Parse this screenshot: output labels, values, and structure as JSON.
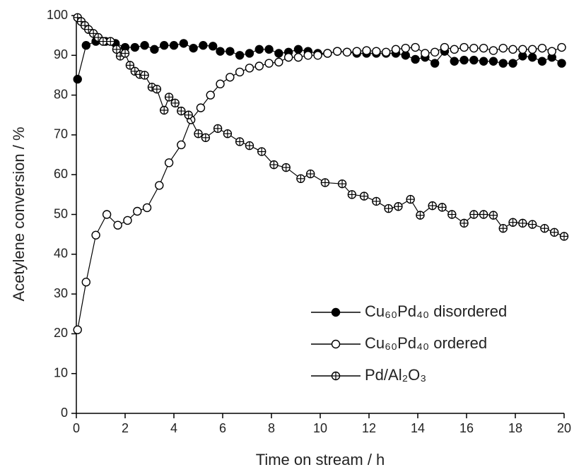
{
  "chart_data": {
    "type": "line",
    "xlabel": "Time on stream / h",
    "ylabel": "Acetylene conversion / %",
    "xlim": [
      0,
      20
    ],
    "xticks": [
      0,
      2,
      4,
      6,
      8,
      10,
      12,
      14,
      16,
      18,
      20
    ],
    "ylim": [
      0,
      100
    ],
    "yticks": [
      0,
      10,
      20,
      30,
      40,
      50,
      60,
      70,
      80,
      90,
      100
    ],
    "legend": "lower right",
    "series": [
      {
        "name": "Cu₆₀Pd₄₀ disordered",
        "color": "#000000",
        "marker": "filled",
        "x": [
          0.05,
          0.4,
          0.8,
          1.2,
          1.6,
          2.0,
          2.4,
          2.8,
          3.2,
          3.6,
          4.0,
          4.4,
          4.8,
          5.2,
          5.6,
          5.9,
          6.3,
          6.7,
          7.1,
          7.5,
          7.9,
          8.3,
          8.7,
          9.1,
          9.5,
          9.9,
          10.3,
          10.7,
          11.1,
          11.5,
          11.9,
          12.3,
          12.7,
          13.1,
          13.5,
          13.9,
          14.3,
          14.7,
          15.1,
          15.5,
          15.9,
          16.3,
          16.7,
          17.1,
          17.5,
          17.9,
          18.3,
          18.7,
          19.1,
          19.5,
          19.9
        ],
        "values": [
          84,
          92.5,
          93.5,
          93.5,
          93,
          92,
          92,
          92.5,
          91.5,
          92.5,
          92.5,
          93,
          91.8,
          92.5,
          92.3,
          91,
          91,
          90,
          90.5,
          91.5,
          91.5,
          90.5,
          90.8,
          91.5,
          91,
          90.5,
          90.5,
          91,
          90.8,
          90.5,
          90.5,
          90.5,
          90.5,
          90.5,
          90,
          89,
          89.5,
          88,
          91,
          88.5,
          88.8,
          88.8,
          88.5,
          88.5,
          88,
          88,
          89.8,
          89.5,
          88.5,
          89.5,
          88
        ]
      },
      {
        "name": "Cu₆₀Pd₄₀ ordered",
        "color": "#000000",
        "marker": "open",
        "x": [
          0.05,
          0.4,
          0.8,
          1.25,
          1.7,
          2.1,
          2.5,
          2.9,
          3.4,
          3.8,
          4.3,
          4.7,
          5.1,
          5.5,
          5.9,
          6.3,
          6.7,
          7.1,
          7.5,
          7.9,
          8.3,
          8.7,
          9.1,
          9.5,
          9.9,
          10.3,
          10.7,
          11.1,
          11.5,
          11.9,
          12.3,
          12.7,
          13.1,
          13.5,
          13.9,
          14.3,
          14.7,
          15.1,
          15.5,
          15.9,
          16.3,
          16.7,
          17.1,
          17.5,
          17.9,
          18.3,
          18.7,
          19.1,
          19.5,
          19.9
        ],
        "values": [
          21,
          33,
          44.8,
          50,
          47.3,
          48.5,
          50.8,
          51.7,
          57.3,
          63,
          67.5,
          73.8,
          76.8,
          80,
          82.8,
          84.5,
          85.8,
          86.8,
          87.3,
          88,
          88.3,
          89.5,
          89.5,
          90,
          90,
          90.5,
          91,
          90.8,
          91,
          91.2,
          91,
          90.8,
          91.5,
          91.8,
          92,
          90.5,
          90.8,
          92,
          91.5,
          92,
          91.8,
          91.8,
          91.2,
          91.8,
          91.5,
          91.5,
          91.5,
          91.8,
          91,
          92
        ]
      },
      {
        "name": "Pd/Al₂O₃",
        "color": "#000000",
        "marker": "crossed",
        "x": [
          0.05,
          0.2,
          0.35,
          0.5,
          0.7,
          0.9,
          1.1,
          1.4,
          1.65,
          1.8,
          2.0,
          2.2,
          2.4,
          2.6,
          2.8,
          3.1,
          3.3,
          3.6,
          3.8,
          4.05,
          4.3,
          4.6,
          5.0,
          5.3,
          5.8,
          6.2,
          6.7,
          7.1,
          7.6,
          8.1,
          8.6,
          9.2,
          9.6,
          10.2,
          10.9,
          11.3,
          11.8,
          12.3,
          12.8,
          13.2,
          13.7,
          14.1,
          14.6,
          15.0,
          15.4,
          15.9,
          16.3,
          16.7,
          17.1,
          17.5,
          17.9,
          18.3,
          18.7,
          19.2,
          19.6,
          20
        ],
        "values": [
          99.5,
          98.5,
          97.5,
          96.5,
          95.5,
          94.5,
          93.5,
          93.5,
          91.5,
          89.8,
          90.5,
          87.5,
          86,
          85.2,
          85,
          82,
          81.5,
          76.2,
          79.5,
          78,
          76,
          75,
          70.3,
          69.3,
          71.6,
          70.3,
          68.3,
          67.3,
          65.8,
          62.5,
          61.8,
          59,
          60.2,
          58,
          57.7,
          55,
          54.6,
          53.3,
          51.5,
          52,
          53.8,
          49.8,
          52.2,
          51.8,
          50,
          47.8,
          50,
          50,
          49.8,
          46.5,
          48,
          47.8,
          47.5,
          46.5,
          45.5,
          44.5
        ]
      }
    ]
  }
}
